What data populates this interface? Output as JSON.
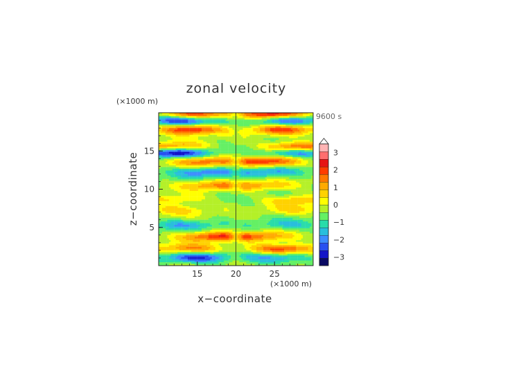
{
  "chart_data": {
    "type": "heatmap",
    "title": "zonal velocity",
    "xlabel": "x−coordinate",
    "ylabel": "z−coordinate",
    "x_unit": "(×1000 m)",
    "y_unit": "(×1000 m)",
    "time_label": "9600 s",
    "xlim": [
      10,
      30
    ],
    "ylim": [
      0,
      20
    ],
    "x_ticks": [
      15,
      20,
      25
    ],
    "y_ticks": [
      5,
      10,
      15
    ],
    "x_tick_labels": [
      "15",
      "20",
      "25"
    ],
    "y_tick_labels": [
      "5",
      "10",
      "15"
    ],
    "colorbar": {
      "min": -3.5,
      "max": 3.5,
      "step": 0.5,
      "tick_values": [
        3,
        2,
        1,
        0,
        -1,
        -2,
        -3
      ],
      "tick_labels": [
        "3",
        "2",
        "1",
        "0",
        "−1",
        "−2",
        "−3"
      ],
      "colors": [
        "#0a0a64",
        "#1414c8",
        "#2850f0",
        "#3c8cff",
        "#28bedc",
        "#28dcaa",
        "#64f064",
        "#b4f028",
        "#ffff00",
        "#ffd200",
        "#ffaa00",
        "#ff7800",
        "#ff3c00",
        "#e61414",
        "#ff6e6e",
        "#ffb4b4"
      ],
      "over_color": "#ffffff"
    },
    "field": {
      "description_basis": "symmetric-ish about x=20, horizontal banded structure",
      "bands": [
        {
          "z": 1.0,
          "amp": -2.5,
          "x_center": 15
        },
        {
          "z": 2.2,
          "amp": 3.0,
          "x_center": 26
        },
        {
          "z": 3.8,
          "amp": 2.5,
          "x_center": 17
        },
        {
          "z": 5.3,
          "amp": -1.2,
          "x_center": 13
        },
        {
          "z": 7.3,
          "amp": 1.2,
          "x_center": 12
        },
        {
          "z": 8.6,
          "amp": 1.6,
          "x_center": 28
        },
        {
          "z": 10.5,
          "amp": 1.8,
          "x_center": 17
        },
        {
          "z": 12.2,
          "amp": -1.8,
          "x_center": 16
        },
        {
          "z": 13.6,
          "amp": 2.8,
          "x_center": 24
        },
        {
          "z": 14.8,
          "amp": -3.2,
          "x_center": 12
        },
        {
          "z": 15.5,
          "amp": 3.2,
          "x_center": 28
        },
        {
          "z": 17.8,
          "amp": 3.4,
          "x_center": 14
        },
        {
          "z": 19.0,
          "amp": -2.8,
          "x_center": 13
        },
        {
          "z": 19.8,
          "amp": 3.6,
          "x_center": 25
        }
      ]
    }
  }
}
